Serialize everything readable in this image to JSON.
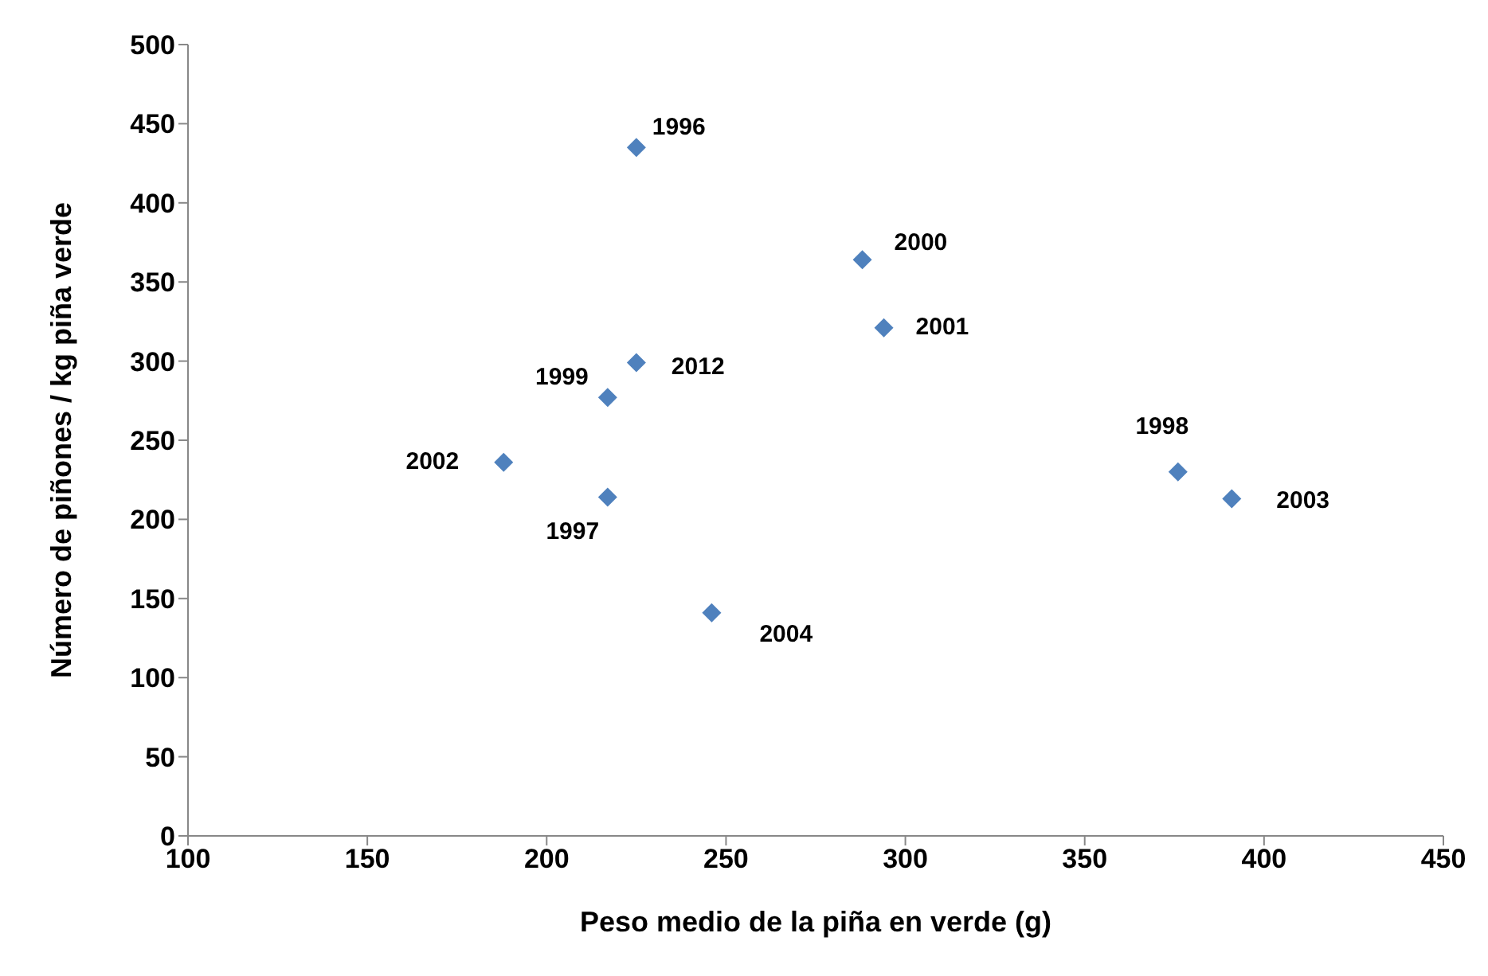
{
  "chart_data": {
    "type": "scatter",
    "xlabel": "Peso medio de la piña en verde (g)",
    "ylabel": "Número de piñones / kg piña verde",
    "x": [
      225,
      217,
      376,
      217,
      288,
      294,
      188,
      391,
      246,
      225
    ],
    "values": [
      435,
      214,
      230,
      277,
      364,
      321,
      236,
      213,
      141,
      299
    ],
    "color": "#4f81bd",
    "marker": "diamond",
    "grid": false,
    "legend": false,
    "xlim": [
      100,
      450
    ],
    "xticks": [
      100,
      150,
      200,
      250,
      300,
      350,
      400,
      450
    ],
    "ylim": [
      0,
      500
    ],
    "yticks": [
      0,
      50,
      100,
      150,
      200,
      250,
      300,
      350,
      400,
      450,
      500
    ],
    "annotations": [
      {
        "text": "1996",
        "x": 225,
        "y": 435
      },
      {
        "text": "1997",
        "x": 217,
        "y": 214
      },
      {
        "text": "1998",
        "x": 376,
        "y": 230
      },
      {
        "text": "1999",
        "x": 217,
        "y": 277
      },
      {
        "text": "2000",
        "x": 288,
        "y": 364
      },
      {
        "text": "2001",
        "x": 294,
        "y": 321
      },
      {
        "text": "2002",
        "x": 188,
        "y": 236
      },
      {
        "text": "2003",
        "x": 391,
        "y": 213
      },
      {
        "text": "2004",
        "x": 246,
        "y": 141
      },
      {
        "text": "2012",
        "x": 225,
        "y": 299
      }
    ]
  }
}
